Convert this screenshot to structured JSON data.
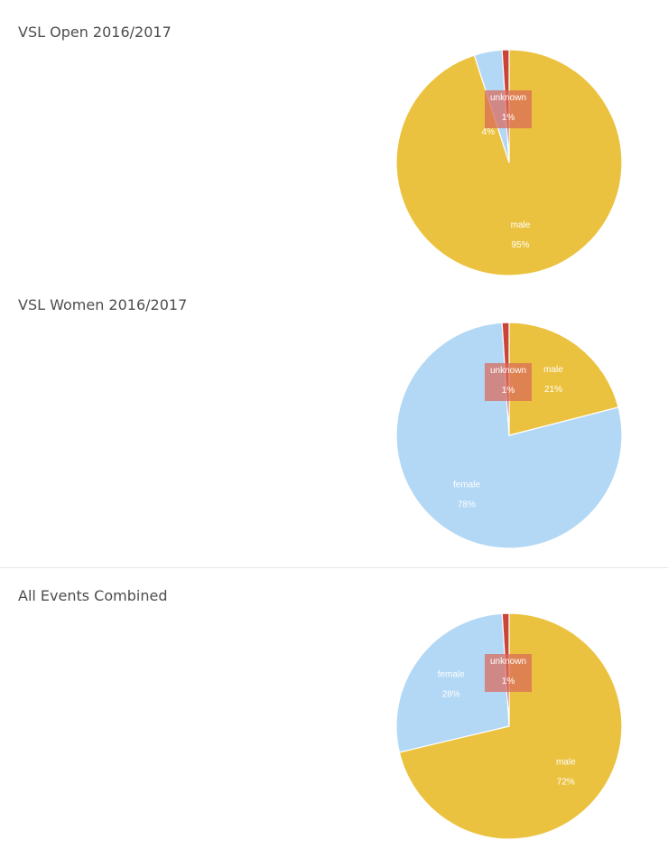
{
  "colors": {
    "male": "#ebc23f",
    "female": "#b2d8f5",
    "unknown": "#c9453a",
    "label_box": "#d96a5a",
    "title": "#4d4d4d"
  },
  "chart_data": [
    {
      "type": "pie",
      "title": "VSL Open 2016/2017",
      "slices": [
        {
          "label": "male",
          "value": 95,
          "value_label": "95%",
          "color": "#ebc23f"
        },
        {
          "label": "",
          "value": 4,
          "value_label": "4%",
          "color": "#b2d8f5"
        },
        {
          "label": "unknown",
          "value": 1,
          "value_label": "1%",
          "color": "#c9453a"
        }
      ]
    },
    {
      "type": "pie",
      "title": "VSL Women 2016/2017",
      "slices": [
        {
          "label": "male",
          "value": 21,
          "value_label": "21%",
          "color": "#ebc23f"
        },
        {
          "label": "female",
          "value": 78,
          "value_label": "78%",
          "color": "#b2d8f5"
        },
        {
          "label": "unknown",
          "value": 1,
          "value_label": "1%",
          "color": "#c9453a"
        }
      ]
    },
    {
      "type": "pie",
      "title": "All Events Combined",
      "slices": [
        {
          "label": "male",
          "value": 72,
          "value_label": "72%",
          "color": "#ebc23f"
        },
        {
          "label": "female",
          "value": 28,
          "value_label": "28%",
          "color": "#b2d8f5"
        },
        {
          "label": "unknown",
          "value": 1,
          "value_label": "1%",
          "color": "#c9453a"
        }
      ]
    }
  ]
}
